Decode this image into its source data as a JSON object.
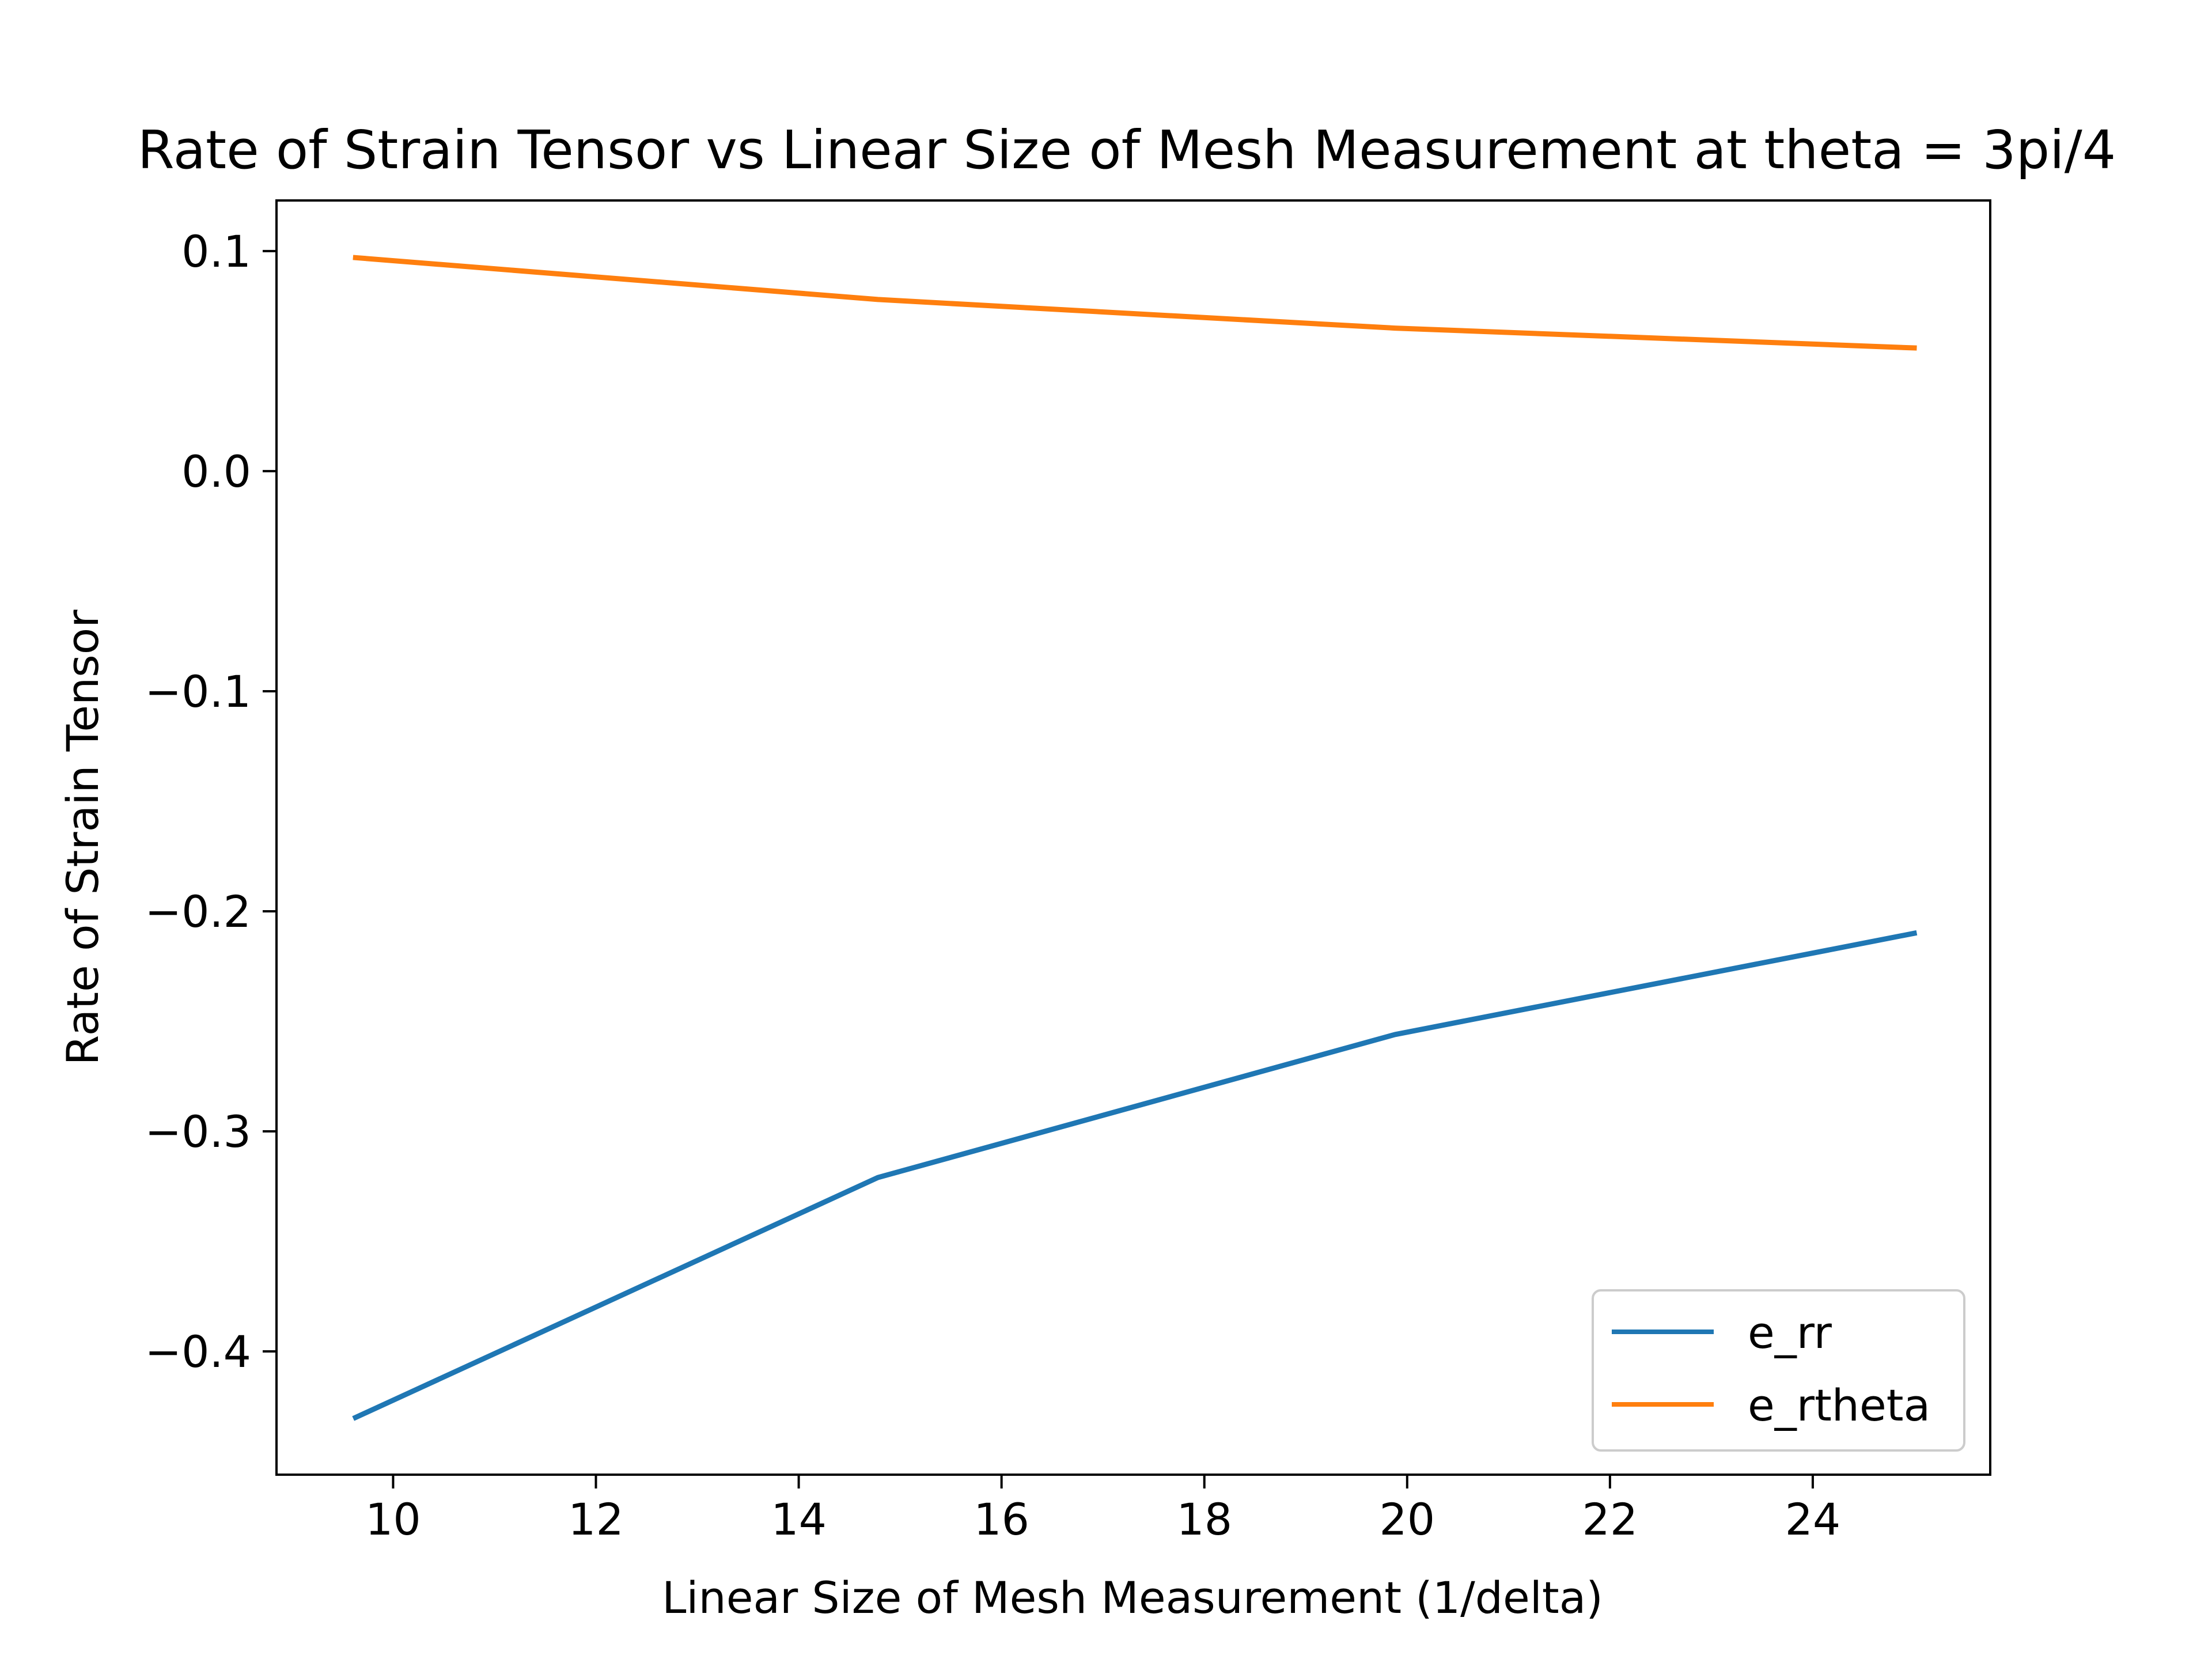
{
  "chart_data": {
    "type": "line",
    "title": "Rate of Strain Tensor vs Linear Size of Mesh Measurement at theta = 3pi/4",
    "xlabel": "Linear Size of Mesh Measurement (1/delta)",
    "ylabel": "Rate of Strain Tensor",
    "xlim": [
      8.85,
      25.75
    ],
    "ylim": [
      -0.456,
      0.123
    ],
    "xticks": [
      10,
      12,
      14,
      16,
      18,
      20,
      22,
      24
    ],
    "yticks": [
      0.1,
      0.0,
      -0.1,
      -0.2,
      -0.3,
      -0.4
    ],
    "xtick_labels": [
      "10",
      "12",
      "14",
      "16",
      "18",
      "20",
      "22",
      "24"
    ],
    "ytick_labels": [
      "0.1",
      "0.0",
      "−0.1",
      "−0.2",
      "−0.3",
      "−0.4"
    ],
    "x": [
      9.63,
      14.78,
      19.88,
      25.0
    ],
    "series": [
      {
        "name": "e_rr",
        "color": "#1f77b4",
        "values": [
          -0.43,
          -0.321,
          -0.256,
          -0.21
        ]
      },
      {
        "name": "e_rtheta",
        "color": "#ff7f0e",
        "values": [
          0.097,
          0.078,
          0.065,
          0.056
        ]
      }
    ],
    "grid": false,
    "legend": "lower-right"
  }
}
